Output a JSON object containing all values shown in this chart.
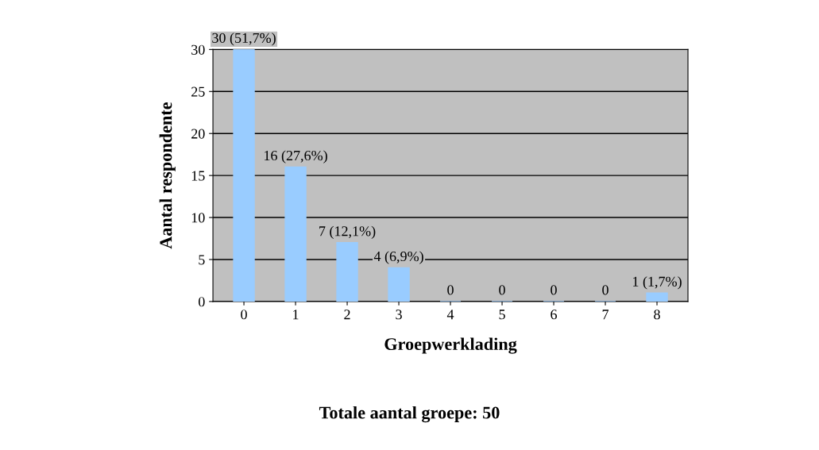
{
  "chart_data": {
    "type": "bar",
    "xlabel": "Groepwerklading",
    "ylabel": "Aantal respondente",
    "categories": [
      "0",
      "1",
      "2",
      "3",
      "4",
      "5",
      "6",
      "7",
      "8"
    ],
    "values": [
      30,
      16,
      7,
      4,
      0,
      0,
      0,
      0,
      1
    ],
    "value_labels": [
      "30 (51,7%)",
      "16 (27,6%)",
      "7 (12,1%)",
      "4 (6,9%)",
      "0",
      "0",
      "0",
      "0",
      "1 (1,7%)"
    ],
    "color": "#99ccff",
    "ylim": [
      0,
      30
    ],
    "yticks": [
      0,
      5,
      10,
      15,
      20,
      25,
      30
    ],
    "grid": "y",
    "legend": false,
    "annotations": [
      "Totale aantal groepe: 50"
    ]
  }
}
